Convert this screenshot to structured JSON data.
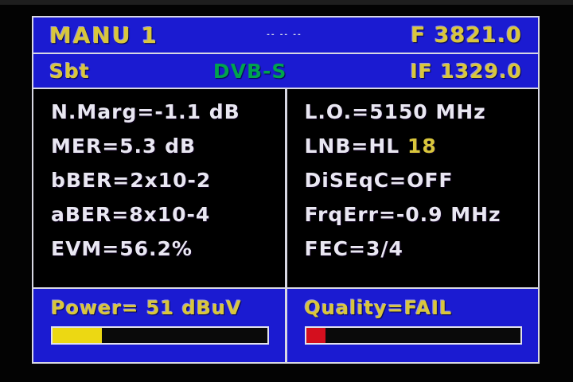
{
  "colors": {
    "panel_blue": "#1b1bd1",
    "text_yellow": "#d9c63c",
    "text_white": "#e9e7f2",
    "text_green": "#00a34e",
    "bar_yellow": "#ecd813",
    "bar_red": "#d40f1e",
    "border_white": "#d8d8e4"
  },
  "header": {
    "title": "MANU 1",
    "center_marks": "-- -- --",
    "frequency": "F 3821.0"
  },
  "subheader": {
    "satellite": "Sbt",
    "standard": "DVB-S",
    "if_frequency": "IF 1329.0"
  },
  "measurements": {
    "left": [
      {
        "text": "N.Marg=-1.1 dB",
        "highlight": ""
      },
      {
        "text": "MER=5.3 dB",
        "highlight": ""
      },
      {
        "text": "bBER=2x10-2",
        "highlight": ""
      },
      {
        "text": "aBER=8x10-4",
        "highlight": ""
      },
      {
        "text": "EVM=56.2%",
        "highlight": ""
      }
    ],
    "right": [
      {
        "text": "L.O.=5150 MHz",
        "highlight": ""
      },
      {
        "text": "LNB=HL ",
        "highlight": "18"
      },
      {
        "text": "DiSEqC=OFF",
        "highlight": ""
      },
      {
        "text": "FrqErr=-0.9 MHz",
        "highlight": ""
      },
      {
        "text": "FEC=3/4",
        "highlight": ""
      }
    ]
  },
  "power": {
    "label": "Power= 51 dBuV",
    "fill_percent": 23,
    "fill_color": "#ecd813"
  },
  "quality": {
    "label": "Quality=FAIL",
    "fill_percent": 9,
    "fill_color": "#d40f1e"
  }
}
